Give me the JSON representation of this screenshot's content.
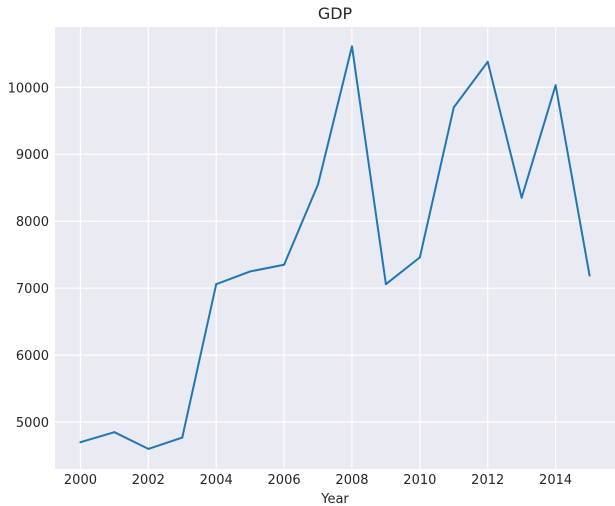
{
  "chart_data": {
    "type": "line",
    "title": "GDP",
    "xlabel": "Year",
    "ylabel": "",
    "xlim": [
      1999.25,
      2015.75
    ],
    "ylim": [
      4300,
      10900
    ],
    "grid": true,
    "legend": false,
    "colors": {
      "background": "#eaeaf2",
      "grid": "#ffffff",
      "line": "#1f77b4",
      "text": "#262626"
    },
    "x_ticks": [
      2000,
      2002,
      2004,
      2006,
      2008,
      2010,
      2012,
      2014
    ],
    "y_ticks": [
      5000,
      6000,
      7000,
      8000,
      9000,
      10000
    ],
    "series": [
      {
        "x": [
          2000,
          2001,
          2002,
          2003,
          2004,
          2005,
          2006,
          2007,
          2008,
          2009,
          2010,
          2011,
          2012,
          2013,
          2014,
          2015
        ],
        "values": [
          4700,
          4850,
          4600,
          4770,
          7060,
          7250,
          7350,
          8550,
          10610,
          7060,
          7460,
          9700,
          10380,
          8350,
          10030,
          7190
        ]
      }
    ]
  }
}
